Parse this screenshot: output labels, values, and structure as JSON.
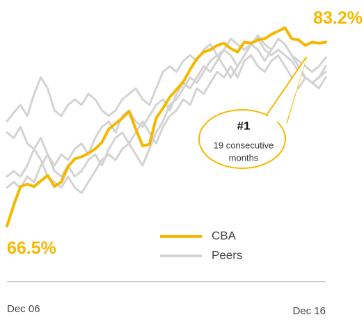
{
  "chart_data": {
    "type": "line",
    "x_labels": [
      "Dec 06",
      "Dec 16"
    ],
    "ylim": [
      65,
      85
    ],
    "series": [
      {
        "name": "CBA",
        "color": "#f5b800",
        "values": [
          66.5,
          68.4,
          70.1,
          70.3,
          70.1,
          70.6,
          71.1,
          70.1,
          70.5,
          71.9,
          72.6,
          72.8,
          73.1,
          73.5,
          74.1,
          75.3,
          75.8,
          76.3,
          76.9,
          75.3,
          73.8,
          73.9,
          76.3,
          77.2,
          78.2,
          78.9,
          79.6,
          80.7,
          81.7,
          82.3,
          82.5,
          82.9,
          83.1,
          82.6,
          82.3,
          83.2,
          83.1,
          83.4,
          83.5,
          83.9,
          84.2,
          84.5,
          83.5,
          83.4,
          82.9,
          83.2,
          83.1,
          83.2
        ],
        "value_labels": {
          "0": "66.5%",
          "47": "83.2%"
        }
      },
      {
        "name": "Peers",
        "color": "#d3d3d3",
        "lines": [
          [
            76.0,
            76.8,
            77.5,
            76.5,
            78.5,
            80.0,
            79.0,
            77.0,
            76.5,
            77.5,
            78.0,
            77.5,
            78.5,
            78.0,
            77.0,
            76.5,
            77.0,
            78.0,
            78.5,
            79.0,
            78.0,
            77.5,
            79.0,
            80.5,
            81.0,
            80.5,
            81.5,
            82.0,
            81.5,
            82.5,
            83.0,
            82.0,
            82.5,
            83.5,
            83.0,
            82.5,
            83.0,
            83.8,
            83.0,
            82.5,
            83.5,
            83.0,
            82.0,
            81.5,
            81.0,
            80.5,
            81.0,
            81.8
          ],
          [
            71.0,
            71.5,
            71.0,
            72.0,
            73.5,
            72.5,
            71.0,
            70.5,
            70.0,
            71.0,
            70.0,
            69.5,
            70.5,
            71.5,
            72.5,
            73.0,
            72.5,
            73.5,
            74.0,
            73.0,
            72.0,
            73.5,
            75.0,
            76.0,
            77.5,
            78.0,
            79.0,
            80.0,
            79.5,
            80.5,
            81.5,
            82.0,
            81.0,
            80.0,
            81.0,
            82.0,
            83.0,
            82.5,
            81.5,
            82.5,
            83.5,
            83.0,
            82.0,
            81.0,
            80.0,
            79.5,
            80.0,
            81.0
          ],
          [
            70.0,
            70.5,
            70.0,
            71.0,
            70.5,
            72.0,
            73.0,
            71.5,
            71.0,
            72.0,
            71.0,
            71.5,
            72.5,
            73.0,
            72.0,
            73.5,
            74.5,
            75.0,
            74.0,
            75.0,
            76.0,
            75.0,
            74.0,
            75.5,
            76.5,
            77.0,
            78.0,
            77.5,
            79.0,
            78.5,
            79.5,
            80.5,
            80.0,
            81.0,
            80.0,
            81.5,
            82.0,
            81.0,
            80.5,
            81.5,
            82.0,
            81.0,
            80.0,
            79.0,
            80.0,
            79.5,
            79.0,
            80.0
          ],
          [
            75.0,
            74.5,
            75.5,
            74.0,
            73.5,
            74.5,
            73.0,
            72.0,
            73.0,
            72.5,
            73.5,
            74.0,
            73.0,
            74.5,
            75.5,
            76.0,
            75.0,
            76.5,
            77.0,
            76.0,
            75.5,
            76.5,
            77.5,
            78.0,
            77.0,
            78.5,
            79.5,
            79.0,
            80.0,
            81.0,
            80.5,
            81.5,
            82.5,
            82.0,
            81.0,
            82.0,
            83.0,
            83.5,
            82.5,
            82.0,
            82.5,
            82.0,
            81.5,
            80.5,
            80.0,
            79.5,
            80.0,
            80.5
          ]
        ]
      }
    ],
    "annotation": {
      "title": "#1",
      "text": [
        "19 consecutive",
        "months"
      ]
    }
  }
}
